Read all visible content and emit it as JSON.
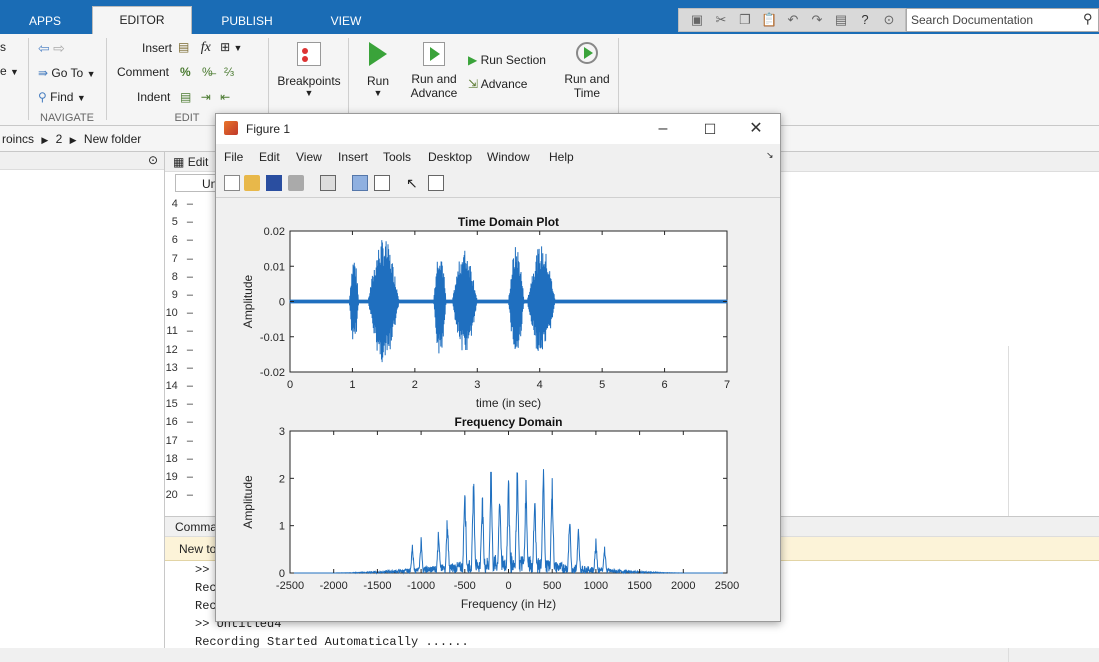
{
  "tabs": [
    {
      "label": "APPS"
    },
    {
      "label": "EDITOR"
    },
    {
      "label": "PUBLISH"
    },
    {
      "label": "VIEW"
    }
  ],
  "search": {
    "placeholder": "Search Documentation"
  },
  "ribbon": {
    "navigate": {
      "goto": "Go To",
      "find": "Find",
      "section": "NAVIGATE",
      "partial_top": "s",
      "partial_mid": "e"
    },
    "edit": {
      "insert": "Insert",
      "comment": "Comment",
      "indent": "Indent",
      "section": "EDIT",
      "fx": "fx"
    },
    "breakpoints": {
      "label": "Breakpoints"
    },
    "run": {
      "label": "Run"
    },
    "run_advance": {
      "line1": "Run and",
      "line2": "Advance"
    },
    "run_section": {
      "label": "Run Section"
    },
    "advance": {
      "label": "Advance"
    },
    "run_time": {
      "line1": "Run and",
      "line2": "Time"
    }
  },
  "address": {
    "path": [
      "roincs",
      "2",
      "New folder"
    ]
  },
  "editor": {
    "header": "Edit",
    "tab": "Un",
    "line_numbers": [
      "4",
      "5",
      "6",
      "7",
      "8",
      "9",
      "10",
      "11",
      "12",
      "13",
      "14",
      "15",
      "16",
      "17",
      "18",
      "19",
      "20"
    ]
  },
  "command": {
    "header": "Comma",
    "notice": "New to",
    "lines": [
      ">>",
      "Rec",
      "Rec",
      ">> Untitled4",
      "Recording Started Automatically ......"
    ]
  },
  "figure": {
    "title": "Figure 1",
    "menu": [
      "File",
      "Edit",
      "View",
      "Insert",
      "Tools",
      "Desktop",
      "Window",
      "Help"
    ]
  },
  "chart_data": [
    {
      "type": "line",
      "title": "Time Domain Plot",
      "xlabel": "time (in sec)",
      "ylabel": "Amplitude",
      "xlim": [
        0,
        7
      ],
      "ylim": [
        -0.02,
        0.02
      ],
      "xticks": [
        "0",
        "1",
        "2",
        "3",
        "4",
        "5",
        "6",
        "7"
      ],
      "yticks": [
        "-0.02",
        "-0.01",
        "0",
        "0.01",
        "0.02"
      ],
      "color": "#1f6fbf",
      "bursts": [
        {
          "t_start": 0.95,
          "t_end": 1.1,
          "amp": 0.013
        },
        {
          "t_start": 1.25,
          "t_end": 1.75,
          "amp": 0.018
        },
        {
          "t_start": 2.3,
          "t_end": 2.5,
          "amp": 0.016
        },
        {
          "t_start": 2.6,
          "t_end": 3.0,
          "amp": 0.015
        },
        {
          "t_start": 3.5,
          "t_end": 3.75,
          "amp": 0.016
        },
        {
          "t_start": 3.8,
          "t_end": 4.25,
          "amp": 0.016
        }
      ]
    },
    {
      "type": "line",
      "title": "Frequency Domain",
      "xlabel": "Frequency (in Hz)",
      "ylabel": "Amplitude",
      "xlim": [
        -2500,
        2500
      ],
      "ylim": [
        0,
        3
      ],
      "xticks": [
        "-2500",
        "-2000",
        "-1500",
        "-1000",
        "-500",
        "0",
        "500",
        "1000",
        "1500",
        "2000",
        "2500"
      ],
      "yticks": [
        "0",
        "1",
        "2",
        "3"
      ],
      "color": "#1f6fbf",
      "peaks": [
        {
          "f": -1100,
          "amp": 0.6
        },
        {
          "f": -1000,
          "amp": 0.8
        },
        {
          "f": -800,
          "amp": 1.0
        },
        {
          "f": -700,
          "amp": 1.3
        },
        {
          "f": -500,
          "amp": 2.2
        },
        {
          "f": -400,
          "amp": 2.25
        },
        {
          "f": -300,
          "amp": 1.9
        },
        {
          "f": -200,
          "amp": 2.45
        },
        {
          "f": -100,
          "amp": 1.9
        },
        {
          "f": 0,
          "amp": 2.2
        },
        {
          "f": 100,
          "amp": 2.45
        },
        {
          "f": 200,
          "amp": 2.1
        },
        {
          "f": 300,
          "amp": 1.8
        },
        {
          "f": 400,
          "amp": 2.35
        },
        {
          "f": 500,
          "amp": 2.2
        },
        {
          "f": 700,
          "amp": 1.3
        },
        {
          "f": 800,
          "amp": 1.0
        },
        {
          "f": 1000,
          "amp": 0.8
        },
        {
          "f": 1100,
          "amp": 0.6
        }
      ]
    }
  ]
}
